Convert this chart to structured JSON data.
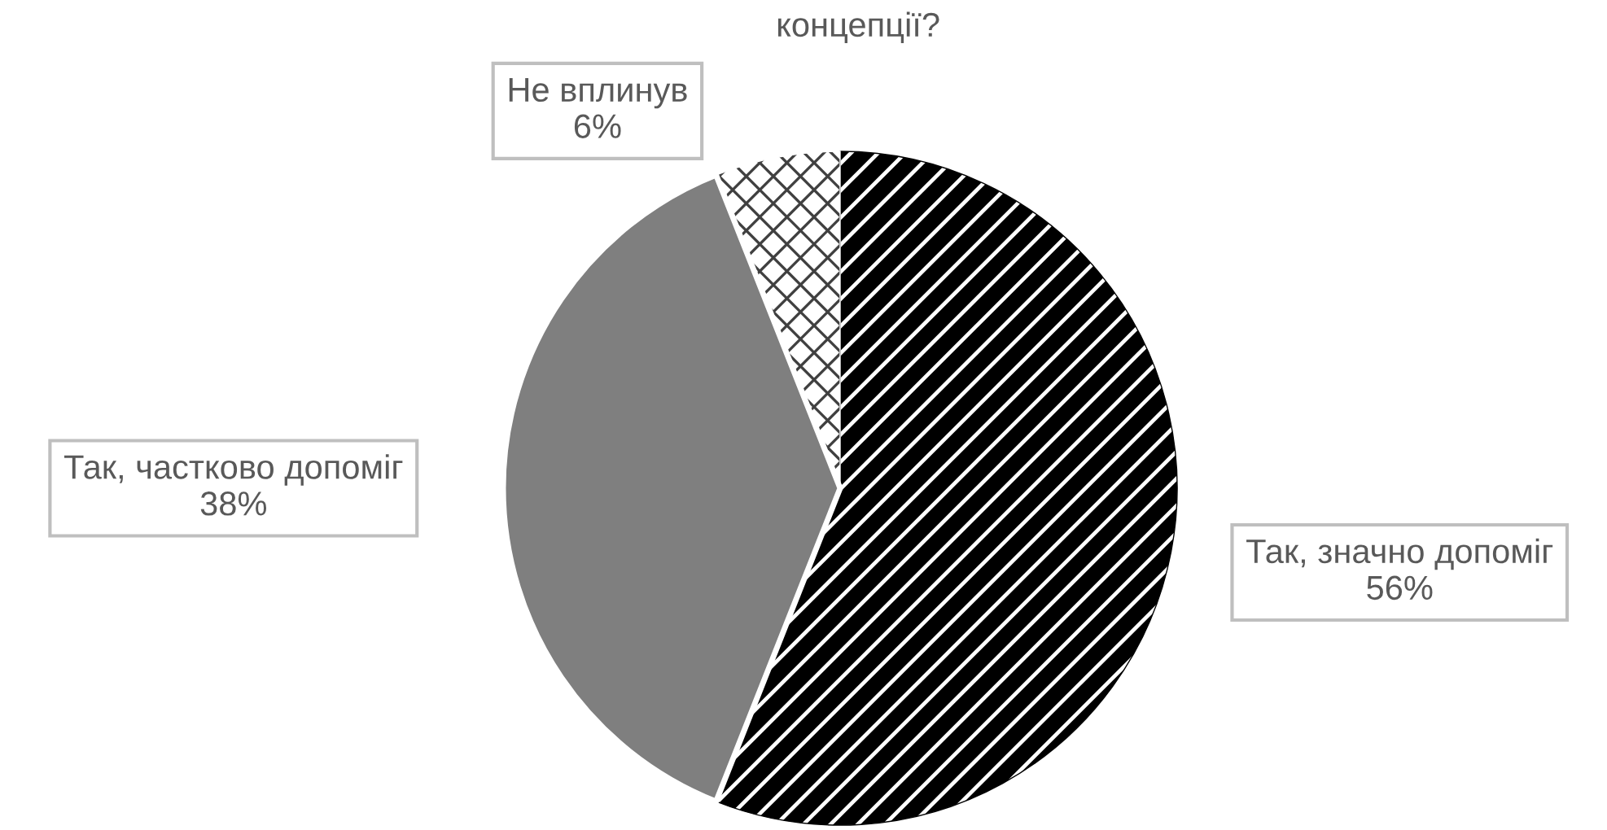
{
  "chart_data": {
    "type": "pie",
    "title": "концепції?",
    "categories": [
      "Так, значно допоміг",
      "Так, частково допоміг",
      "Не вплинув"
    ],
    "values": [
      56,
      38,
      6
    ],
    "value_labels": [
      "56%",
      "38%",
      "6%"
    ],
    "colors": [
      "#000000",
      "#7f7f7f",
      "#ffffff"
    ]
  }
}
